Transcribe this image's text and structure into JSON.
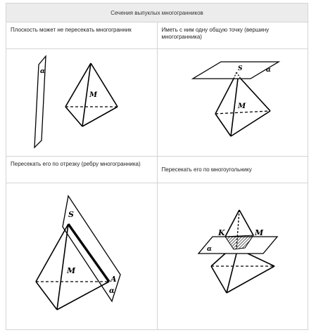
{
  "table": {
    "title": "Сечения выпуклых многогранников",
    "cells": [
      {
        "caption": "Плоскость может не пересекать многогранник"
      },
      {
        "caption": "Иметь с ним одну общую точку (вершину многогранника)"
      },
      {
        "caption": "Пересекать его по отрезку (ребру многогранника)"
      },
      {
        "caption": "Пересекать его по многоугольнику"
      }
    ]
  },
  "figures": {
    "fig1": {
      "plane_label": "α",
      "point_label": "M"
    },
    "fig2": {
      "vertex_label": "S",
      "plane_label": "α",
      "point_label": "M"
    },
    "fig3": {
      "vertex_label": "S",
      "point_label": "M",
      "edge_end_label": "A",
      "plane_label": "α"
    },
    "fig4": {
      "k_label": "K",
      "m_label": "M",
      "plane_label": "α"
    }
  }
}
